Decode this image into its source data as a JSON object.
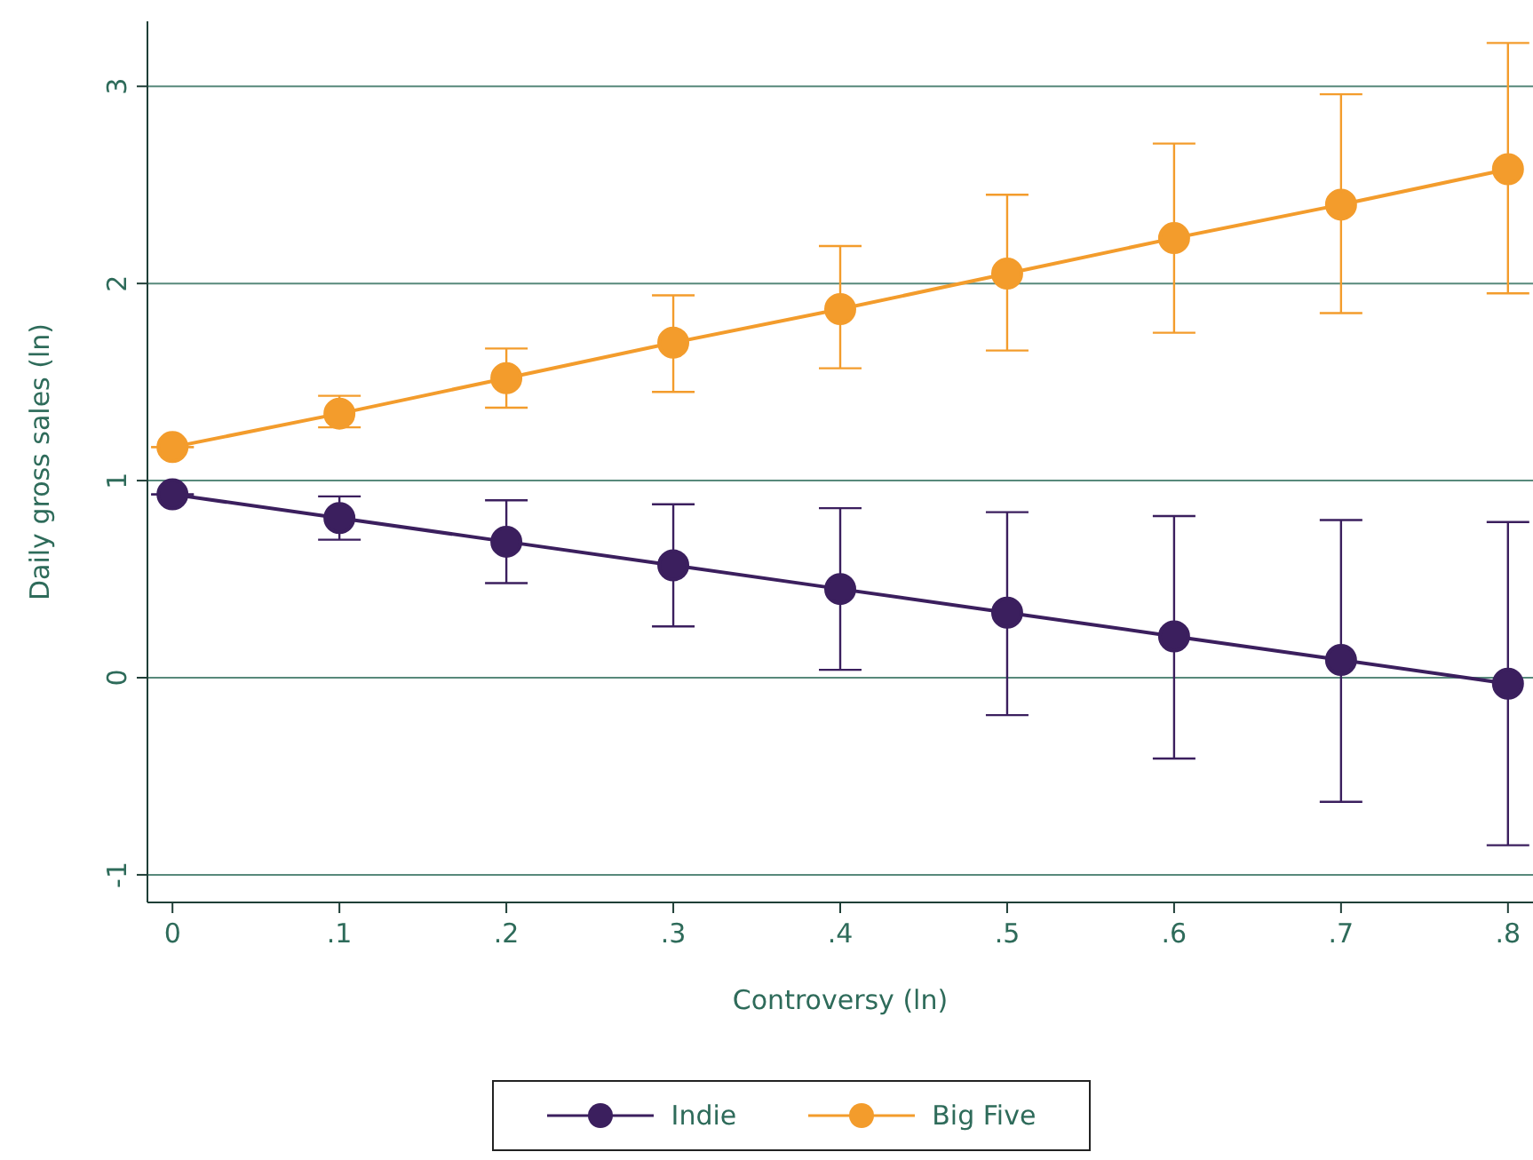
{
  "chart_data": {
    "type": "line",
    "xlabel": "Controversy (ln)",
    "ylabel": "Daily gross sales (ln)",
    "x": [
      0,
      0.1,
      0.2,
      0.3,
      0.4,
      0.5,
      0.6,
      0.7,
      0.8
    ],
    "series": [
      {
        "name": "Indie",
        "color": "#3b1f5e",
        "values": [
          0.93,
          0.81,
          0.69,
          0.57,
          0.45,
          0.33,
          0.21,
          0.09,
          -0.03
        ],
        "errors": [
          null,
          [
            0.7,
            0.92
          ],
          [
            0.48,
            0.9
          ],
          [
            0.26,
            0.88
          ],
          [
            0.04,
            0.86
          ],
          [
            -0.19,
            0.84
          ],
          [
            -0.41,
            0.82
          ],
          [
            -0.63,
            0.8
          ],
          [
            -0.85,
            0.79
          ]
        ]
      },
      {
        "name": "Big Five",
        "color": "#f39c2c",
        "values": [
          1.17,
          1.34,
          1.52,
          1.7,
          1.87,
          2.05,
          2.23,
          2.4,
          2.58
        ],
        "errors": [
          null,
          [
            1.27,
            1.43
          ],
          [
            1.37,
            1.67
          ],
          [
            1.45,
            1.94
          ],
          [
            1.57,
            2.19
          ],
          [
            1.66,
            2.45
          ],
          [
            1.75,
            2.71
          ],
          [
            1.85,
            2.96
          ],
          [
            1.95,
            3.22
          ]
        ]
      }
    ],
    "xlim": [
      -0.015,
      0.815
    ],
    "xticks": [
      {
        "value": 0,
        "label": "0"
      },
      {
        "value": 0.1,
        "label": ".1"
      },
      {
        "value": 0.2,
        "label": ".2"
      },
      {
        "value": 0.3,
        "label": ".3"
      },
      {
        "value": 0.4,
        "label": ".4"
      },
      {
        "value": 0.5,
        "label": ".5"
      },
      {
        "value": 0.6,
        "label": ".6"
      },
      {
        "value": 0.7,
        "label": ".7"
      },
      {
        "value": 0.8,
        "label": ".8"
      }
    ],
    "ylim": [
      -1.14,
      3.33
    ],
    "yticks": [
      {
        "value": -1,
        "label": "-1"
      },
      0,
      1,
      2,
      3
    ],
    "grid": "y",
    "legend": "bottom",
    "marker": "circle",
    "line_style": "solid"
  }
}
